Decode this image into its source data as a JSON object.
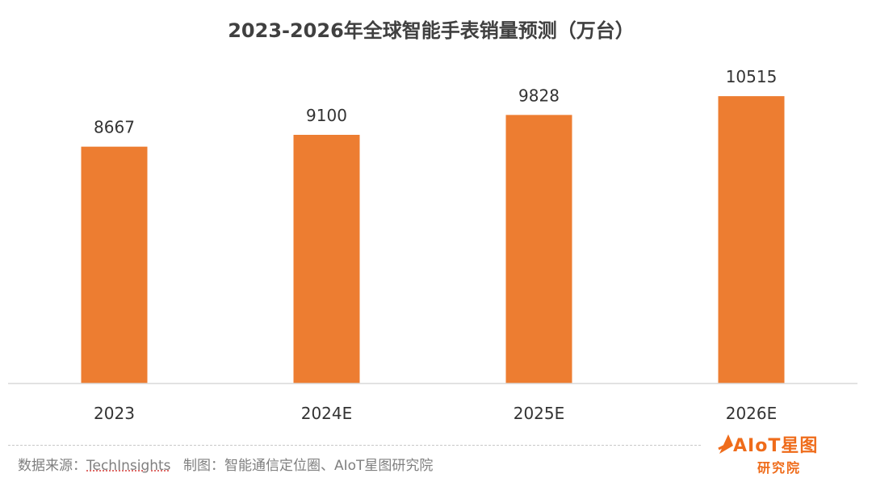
{
  "colors": {
    "bar": "#ed7d31",
    "axis": "#d9d9d9",
    "text": "#333333",
    "footer": "#7f7f7f",
    "brand": "#ef6c1b"
  },
  "chart_data": {
    "type": "bar",
    "title": "2023-2026年全球智能手表销量预测（万台）",
    "categories": [
      "2023",
      "2024E",
      "2025E",
      "2026E"
    ],
    "series": [
      {
        "values": [
          8667,
          9100,
          9828,
          10515
        ]
      }
    ],
    "ylim": [
      0,
      13000
    ],
    "grid": false,
    "data_labels": true
  },
  "footer": {
    "source_label": "数据来源：",
    "source_name": "TechInsights",
    "maker_text": "制图：智能通信定位圈、AIoT星图研究院"
  },
  "logo": {
    "main": "AIoT星图",
    "sub": "研究院",
    "icon": "rocket-icon"
  }
}
